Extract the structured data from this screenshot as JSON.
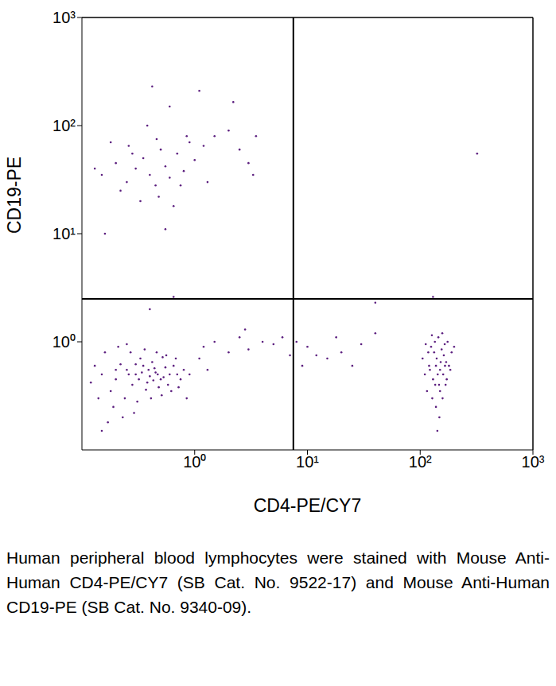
{
  "chart_data": {
    "type": "scatter",
    "x_label": "CD4-PE/CY7",
    "y_label": "CD19-PE",
    "caption": "Human peripheral blood lymphocytes were stained with Mouse Anti-Human CD4-PE/CY7 (SB Cat. No. 9522-17) and Mouse Anti-Human CD19-PE (SB Cat. No. 9340-09).",
    "log": true,
    "color": "#5c1f7f",
    "marker": "dot",
    "xlim": [
      0.1,
      1000
    ],
    "ylim": [
      0.1,
      1000
    ],
    "xticks": [
      {
        "value": 1,
        "label": "10⁰"
      },
      {
        "value": 10,
        "label": "10¹"
      },
      {
        "value": 100,
        "label": "10²"
      },
      {
        "value": 1000,
        "label": "10³"
      }
    ],
    "yticks": [
      {
        "value": 1,
        "label": "10⁰"
      },
      {
        "value": 10,
        "label": "10¹"
      },
      {
        "value": 100,
        "label": "10²"
      },
      {
        "value": 1000,
        "label": "10³"
      }
    ],
    "gates": {
      "x": 7.5,
      "y": 2.5
    },
    "x": [
      0.15,
      0.2,
      0.25,
      0.3,
      0.35,
      0.4,
      0.45,
      0.5,
      0.55,
      0.6,
      0.18,
      0.22,
      0.28,
      0.33,
      0.38,
      0.42,
      0.48,
      0.52,
      0.58,
      0.65,
      0.7,
      0.75,
      0.13,
      0.14,
      0.16,
      0.19,
      0.21,
      0.24,
      0.27,
      0.31,
      0.36,
      0.41,
      0.46,
      0.51,
      0.56,
      0.62,
      0.68,
      0.72,
      0.8,
      0.17,
      0.23,
      0.29,
      0.12,
      0.26,
      0.34,
      0.44,
      0.32,
      0.39,
      0.47,
      0.53,
      0.3,
      0.2,
      0.15,
      0.25,
      0.9,
      1.1,
      1.3,
      0.85,
      0.37,
      0.43,
      0.15,
      0.2,
      0.25,
      0.3,
      0.35,
      0.4,
      0.45,
      0.5,
      0.55,
      0.6,
      0.7,
      0.8,
      0.9,
      1.0,
      1.2,
      1.5,
      2.0,
      2.5,
      3.0,
      3.5,
      0.18,
      0.22,
      0.28,
      0.33,
      0.38,
      0.42,
      0.48,
      0.6,
      1.1,
      2.2,
      0.65,
      0.16,
      0.55,
      0.75,
      0.13,
      0.26,
      0.46,
      1.3,
      3.3,
      0.85,
      1.2,
      1.5,
      2.0,
      2.5,
      3.0,
      4.0,
      5.0,
      6.0,
      8.0,
      10,
      12,
      15,
      20,
      25,
      30,
      40,
      9,
      18,
      7,
      2.8,
      110,
      120,
      130,
      140,
      150,
      160,
      170,
      180,
      125,
      135,
      145,
      155,
      165,
      175,
      115,
      128,
      138,
      148,
      158,
      168,
      105,
      190,
      200,
      142,
      133,
      152,
      162,
      122,
      118,
      172,
      138,
      147,
      157,
      127,
      185,
      112,
      150,
      143,
      136,
      166,
      320,
      0.65,
      40,
      130,
      0.4
    ],
    "values": [
      0.5,
      0.45,
      0.55,
      0.5,
      0.6,
      0.48,
      0.52,
      0.45,
      0.58,
      0.5,
      0.35,
      0.62,
      0.4,
      0.7,
      0.42,
      0.65,
      0.38,
      0.72,
      0.4,
      0.6,
      0.5,
      0.45,
      0.6,
      0.3,
      0.8,
      0.25,
      0.9,
      0.3,
      0.8,
      0.28,
      0.85,
      0.3,
      0.8,
      0.32,
      0.75,
      0.35,
      0.7,
      0.38,
      0.55,
      0.18,
      0.2,
      0.22,
      0.42,
      0.5,
      0.52,
      0.57,
      0.45,
      0.55,
      0.5,
      0.47,
      0.62,
      0.55,
      0.15,
      0.95,
      0.5,
      0.7,
      0.55,
      0.3,
      0.36,
      0.44,
      35,
      45,
      30,
      40,
      50,
      35,
      28,
      60,
      42,
      33,
      55,
      38,
      70,
      48,
      65,
      80,
      90,
      60,
      45,
      80,
      70,
      25,
      55,
      20,
      100,
      230,
      22,
      150,
      210,
      165,
      18,
      10,
      11,
      28,
      40,
      65,
      75,
      30,
      35,
      80,
      0.9,
      1.0,
      0.8,
      1.1,
      0.85,
      1.0,
      0.95,
      1.1,
      1.0,
      0.9,
      0.75,
      0.7,
      0.8,
      0.6,
      0.95,
      1.2,
      0.6,
      1.1,
      0.75,
      1.3,
      0.5,
      0.6,
      0.45,
      0.7,
      0.55,
      0.5,
      0.65,
      0.6,
      0.9,
      1.0,
      1.1,
      0.85,
      0.95,
      1.0,
      0.35,
      0.3,
      0.25,
      0.2,
      0.3,
      0.4,
      0.7,
      0.8,
      0.9,
      0.15,
      0.8,
      0.65,
      0.75,
      0.55,
      0.8,
      0.45,
      0.6,
      0.4,
      1.2,
      1.15,
      0.55,
      0.95,
      0.35,
      0.5,
      0.4,
      0.6,
      55,
      2.6,
      2.3,
      2.6,
      2.0
    ]
  }
}
